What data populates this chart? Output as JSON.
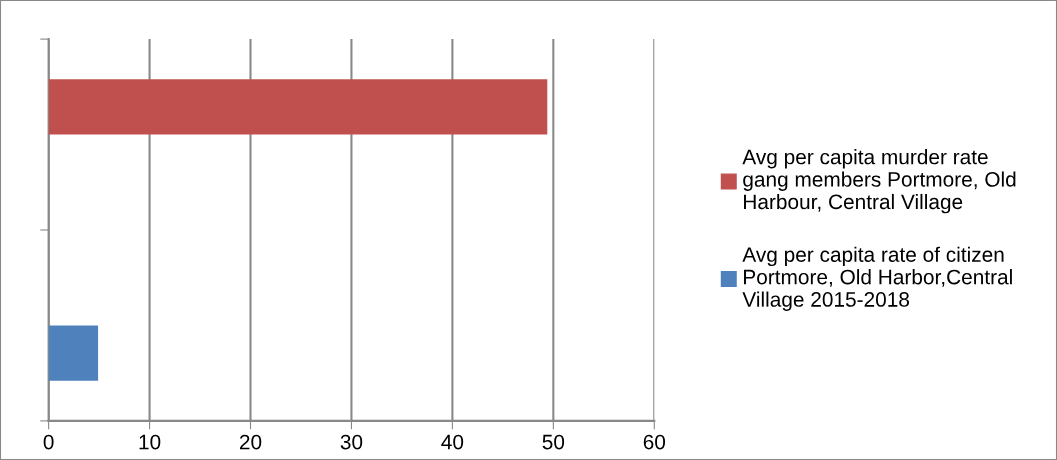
{
  "chart_data": {
    "type": "bar",
    "orientation": "horizontal",
    "categories": [
      null,
      null
    ],
    "series": [
      {
        "name": "Avg per capita rate of citizen Portmore, Old Harbor,Central Village 2015-2018",
        "color": "#4f81bd",
        "values": [
          null,
          4.9
        ]
      },
      {
        "name": "Avg per capita murder rate gang members Portmore, Old Harbour, Central Village",
        "color": "#c0504d",
        "values": [
          49.4,
          null
        ]
      }
    ],
    "xlim": [
      0,
      60
    ],
    "xticks": [
      0,
      10,
      20,
      30,
      40,
      50,
      60
    ],
    "grid": "x",
    "legend": "right",
    "tick_labels": "x"
  }
}
